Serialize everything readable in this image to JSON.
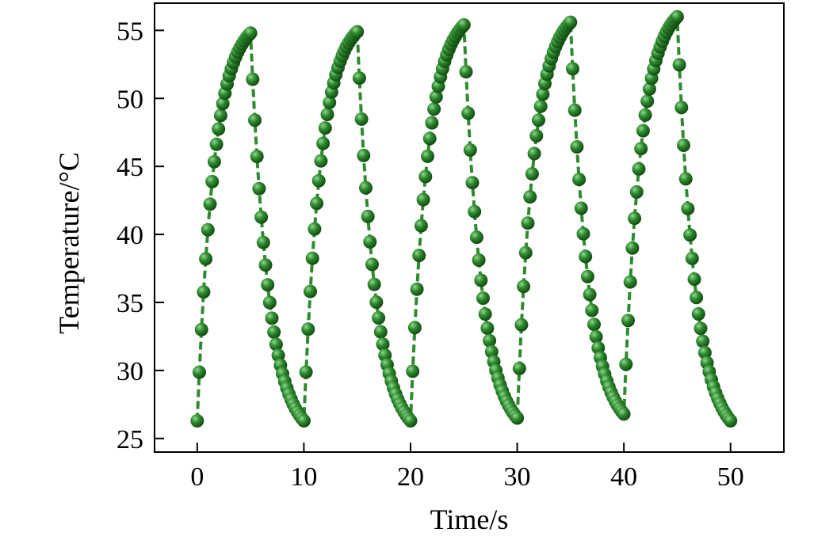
{
  "chart_data": {
    "type": "line",
    "title": "",
    "xlabel": "Time/s",
    "ylabel": "Temperature/°C",
    "xlim": [
      -4.0,
      55.0
    ],
    "ylim": [
      24.0,
      57.0
    ],
    "x_ticks": [
      0,
      10,
      20,
      30,
      40,
      50
    ],
    "y_ticks": [
      25,
      30,
      35,
      40,
      45,
      50,
      55
    ],
    "tick_direction": "in",
    "grid": false,
    "legend": "none",
    "marker": "sphere",
    "colors": {
      "series": "#2f8a2f",
      "marker_highlight": "#8fd88f",
      "marker_edge": "#0f4a0f",
      "axis": "#000000"
    },
    "series": [
      {
        "sample_interval_s": 0.2,
        "cycles": [
          {
            "heat_start_s": 0,
            "heat_end_s": 5,
            "cool_end_s": 10,
            "start_temp": 26.3,
            "peak_temp": 54.8,
            "end_temp": 26.3
          },
          {
            "heat_start_s": 10,
            "heat_end_s": 15,
            "cool_end_s": 20,
            "start_temp": 26.3,
            "peak_temp": 54.9,
            "end_temp": 26.3
          },
          {
            "heat_start_s": 20,
            "heat_end_s": 25,
            "cool_end_s": 30,
            "start_temp": 26.3,
            "peak_temp": 55.4,
            "end_temp": 26.5
          },
          {
            "heat_start_s": 30,
            "heat_end_s": 35,
            "cool_end_s": 40,
            "start_temp": 26.5,
            "peak_temp": 55.6,
            "end_temp": 26.8
          },
          {
            "heat_start_s": 40,
            "heat_end_s": 45,
            "cool_end_s": 50,
            "start_temp": 26.8,
            "peak_temp": 56.0,
            "end_temp": 26.3
          }
        ]
      }
    ]
  }
}
